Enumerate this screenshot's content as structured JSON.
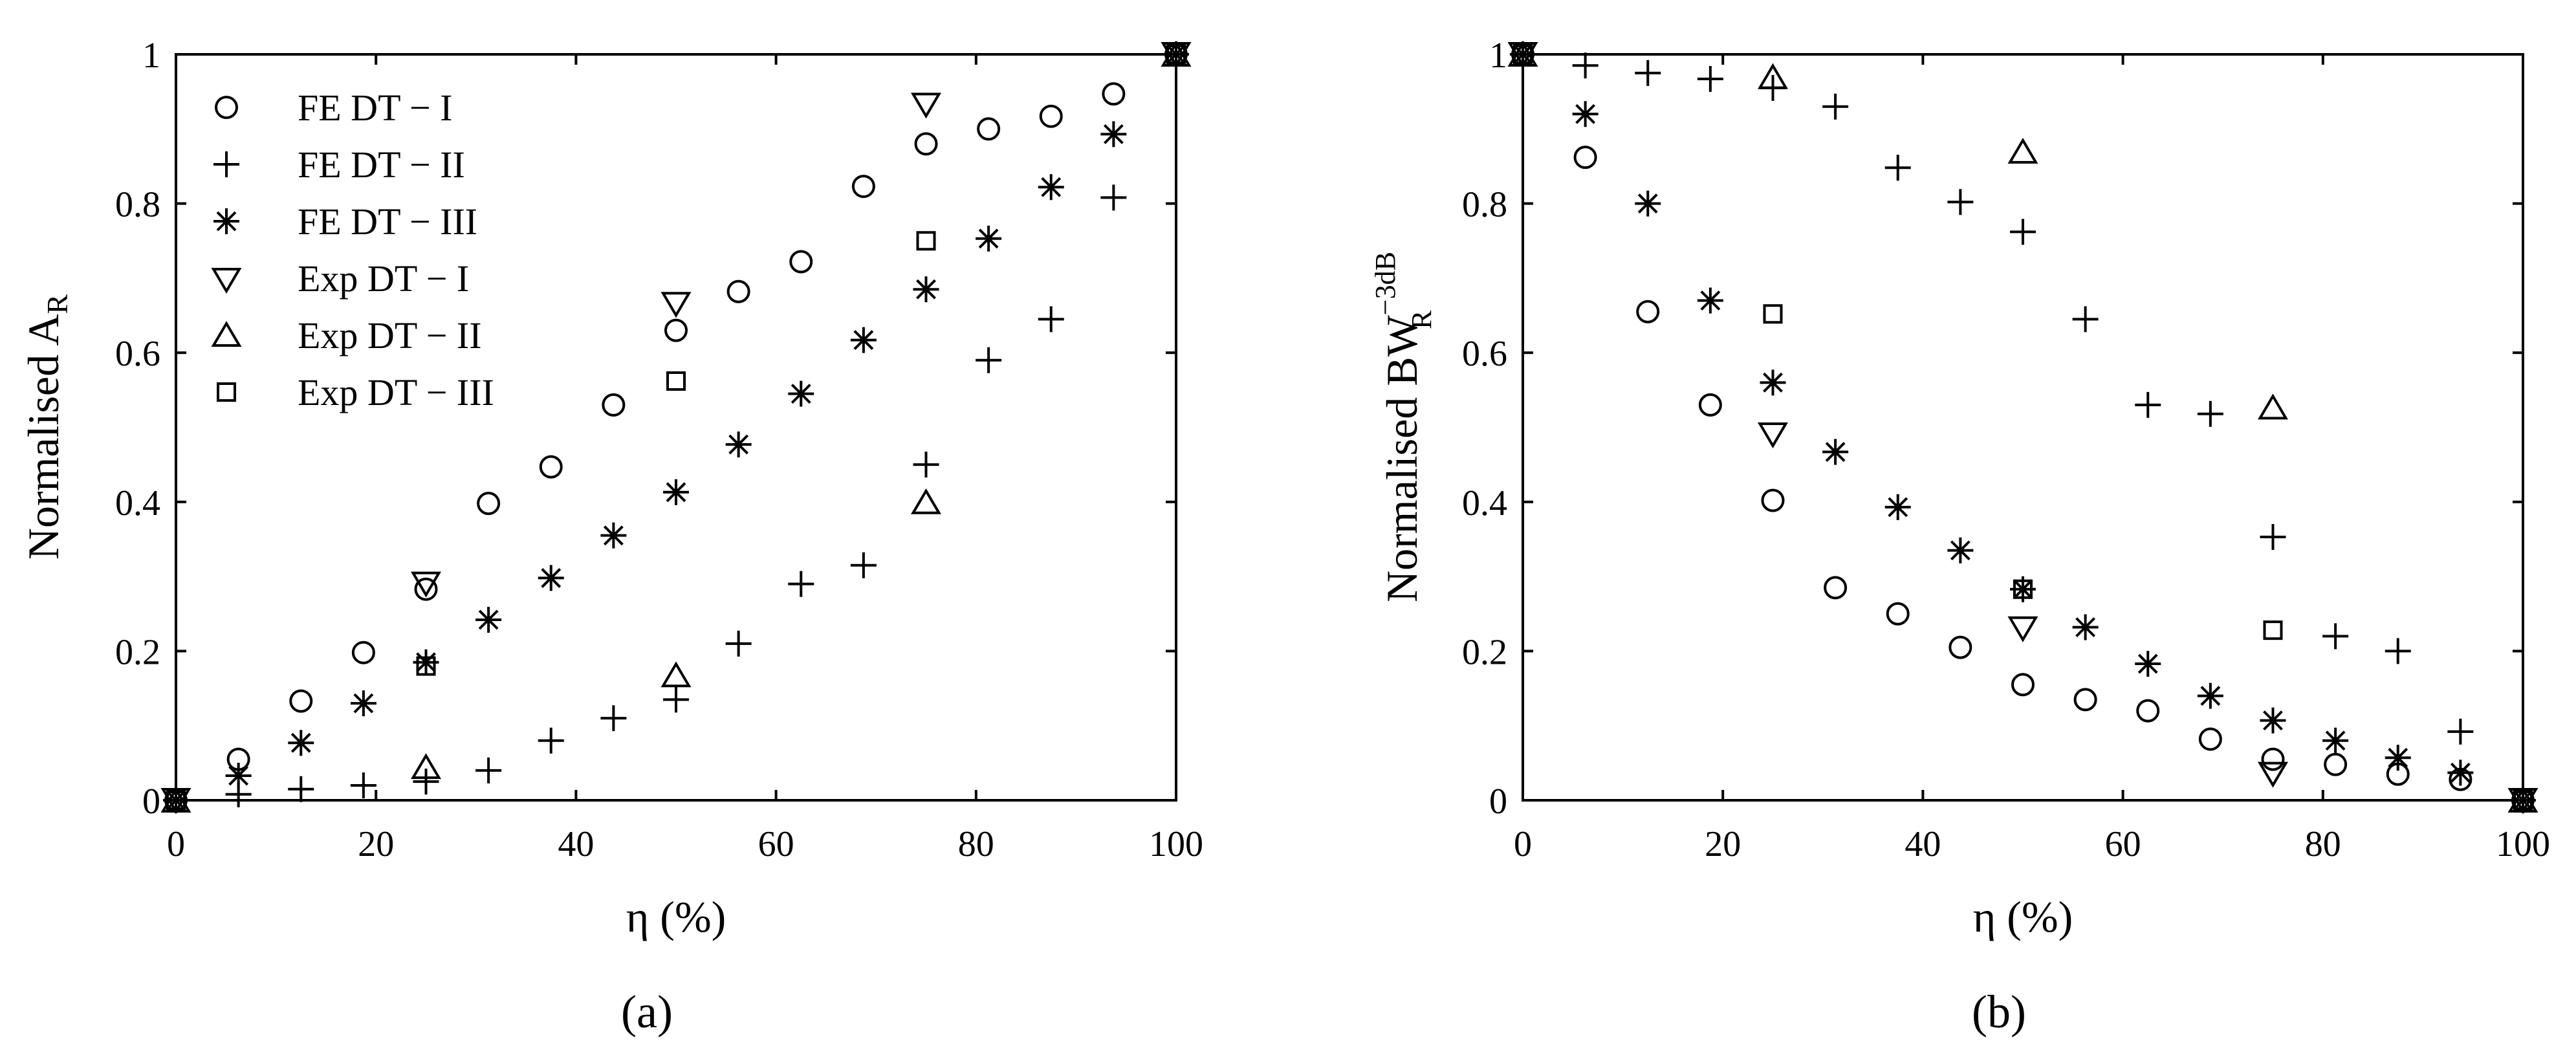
{
  "legend": {
    "fe1": "FE DT − I",
    "fe2": "FE DT − II",
    "fe3": "FE DT − III",
    "exp1": "Exp DT − I",
    "exp2": "Exp DT − II",
    "exp3": "Exp DT − III"
  },
  "chart_data": [
    {
      "type": "scatter",
      "panel_label": "(a)",
      "xlabel": "η (%)",
      "ylabel": "Normalised A",
      "ylabel_sub": "R",
      "xlim": [
        0,
        100
      ],
      "ylim": [
        0,
        1
      ],
      "xticks": [
        "0",
        "20",
        "40",
        "60",
        "80",
        "100"
      ],
      "yticks": [
        "0",
        "0.2",
        "0.4",
        "0.6",
        "0.8",
        "1"
      ],
      "legend_position": "top-left",
      "grid": false,
      "series": [
        {
          "name": "FE DT − I",
          "marker": "circle",
          "x": [
            0,
            6.25,
            12.5,
            18.75,
            25,
            31.25,
            37.5,
            43.75,
            50,
            56.25,
            62.5,
            68.75,
            75,
            81.25,
            87.5,
            93.75,
            100
          ],
          "y": [
            0,
            0.055,
            0.133,
            0.198,
            0.283,
            0.398,
            0.447,
            0.53,
            0.63,
            0.682,
            0.722,
            0.823,
            0.88,
            0.9,
            0.917,
            0.947,
            1
          ]
        },
        {
          "name": "FE DT − II",
          "marker": "plus",
          "x": [
            0,
            6.25,
            12.5,
            18.75,
            25,
            31.25,
            37.5,
            43.75,
            50,
            56.25,
            62.5,
            68.75,
            75,
            81.25,
            87.5,
            93.75,
            100
          ],
          "y": [
            0,
            0.008,
            0.015,
            0.02,
            0.025,
            0.04,
            0.08,
            0.11,
            0.135,
            0.21,
            0.29,
            0.315,
            0.45,
            0.59,
            0.645,
            0.808,
            1
          ]
        },
        {
          "name": "FE DT − III",
          "marker": "asterisk",
          "x": [
            0,
            6.25,
            12.5,
            18.75,
            25,
            31.25,
            37.5,
            43.75,
            50,
            56.25,
            62.5,
            68.75,
            75,
            81.25,
            87.5,
            93.75,
            100
          ],
          "y": [
            0,
            0.033,
            0.077,
            0.13,
            0.185,
            0.242,
            0.298,
            0.355,
            0.413,
            0.477,
            0.545,
            0.617,
            0.685,
            0.753,
            0.822,
            0.893,
            1
          ]
        },
        {
          "name": "Exp DT − I",
          "marker": "triangle-down",
          "x": [
            0,
            25,
            50,
            75,
            100
          ],
          "y": [
            0,
            0.29,
            0.665,
            0.932,
            1
          ]
        },
        {
          "name": "Exp DT − II",
          "marker": "triangle-up",
          "x": [
            0,
            25,
            50,
            75,
            100
          ],
          "y": [
            0,
            0.045,
            0.168,
            0.4,
            1
          ]
        },
        {
          "name": "Exp DT − III",
          "marker": "square",
          "x": [
            0,
            25,
            50,
            75,
            100
          ],
          "y": [
            0,
            0.18,
            0.562,
            0.75,
            1
          ]
        }
      ]
    },
    {
      "type": "scatter",
      "panel_label": "(b)",
      "xlabel": "η (%)",
      "ylabel": "Normalised BW",
      "ylabel_sub": "R",
      "ylabel_sup": "−3dB",
      "xlim": [
        0,
        100
      ],
      "ylim": [
        0,
        1
      ],
      "xticks": [
        "0",
        "20",
        "40",
        "60",
        "80",
        "100"
      ],
      "yticks": [
        "0",
        "0.2",
        "0.4",
        "0.6",
        "0.8",
        "1"
      ],
      "grid": false,
      "series": [
        {
          "name": "FE DT − I",
          "marker": "circle",
          "x": [
            0,
            6.25,
            12.5,
            18.75,
            25,
            31.25,
            37.5,
            43.75,
            50,
            56.25,
            62.5,
            68.75,
            75,
            81.25,
            87.5,
            93.75,
            100
          ],
          "y": [
            1,
            0.862,
            0.655,
            0.53,
            0.402,
            0.285,
            0.25,
            0.205,
            0.155,
            0.135,
            0.12,
            0.082,
            0.055,
            0.048,
            0.035,
            0.028,
            0
          ]
        },
        {
          "name": "FE DT − II",
          "marker": "plus",
          "x": [
            0,
            6.25,
            12.5,
            18.75,
            25,
            31.25,
            37.5,
            43.75,
            50,
            56.25,
            62.5,
            68.75,
            75,
            81.25,
            87.5,
            93.75,
            100
          ],
          "y": [
            1,
            0.985,
            0.975,
            0.967,
            0.955,
            0.93,
            0.848,
            0.802,
            0.762,
            0.645,
            0.53,
            0.518,
            0.353,
            0.22,
            0.2,
            0.092,
            0
          ]
        },
        {
          "name": "FE DT − III",
          "marker": "asterisk",
          "x": [
            0,
            6.25,
            12.5,
            18.75,
            25,
            31.25,
            37.5,
            43.75,
            50,
            56.25,
            62.5,
            68.75,
            75,
            81.25,
            87.5,
            93.75,
            100
          ],
          "y": [
            1,
            0.92,
            0.8,
            0.67,
            0.56,
            0.467,
            0.393,
            0.335,
            0.283,
            0.232,
            0.183,
            0.14,
            0.107,
            0.08,
            0.057,
            0.037,
            0
          ]
        },
        {
          "name": "Exp DT − I",
          "marker": "triangle-down",
          "x": [
            0,
            25,
            50,
            75,
            100
          ],
          "y": [
            1,
            0.49,
            0.23,
            0.035,
            0
          ]
        },
        {
          "name": "Exp DT − II",
          "marker": "triangle-up",
          "x": [
            0,
            25,
            50,
            75,
            100
          ],
          "y": [
            1,
            0.97,
            0.87,
            0.527,
            0
          ]
        },
        {
          "name": "Exp DT − III",
          "marker": "square",
          "x": [
            0,
            25,
            50,
            75,
            100
          ],
          "y": [
            1,
            0.652,
            0.283,
            0.228,
            0
          ]
        }
      ]
    }
  ]
}
